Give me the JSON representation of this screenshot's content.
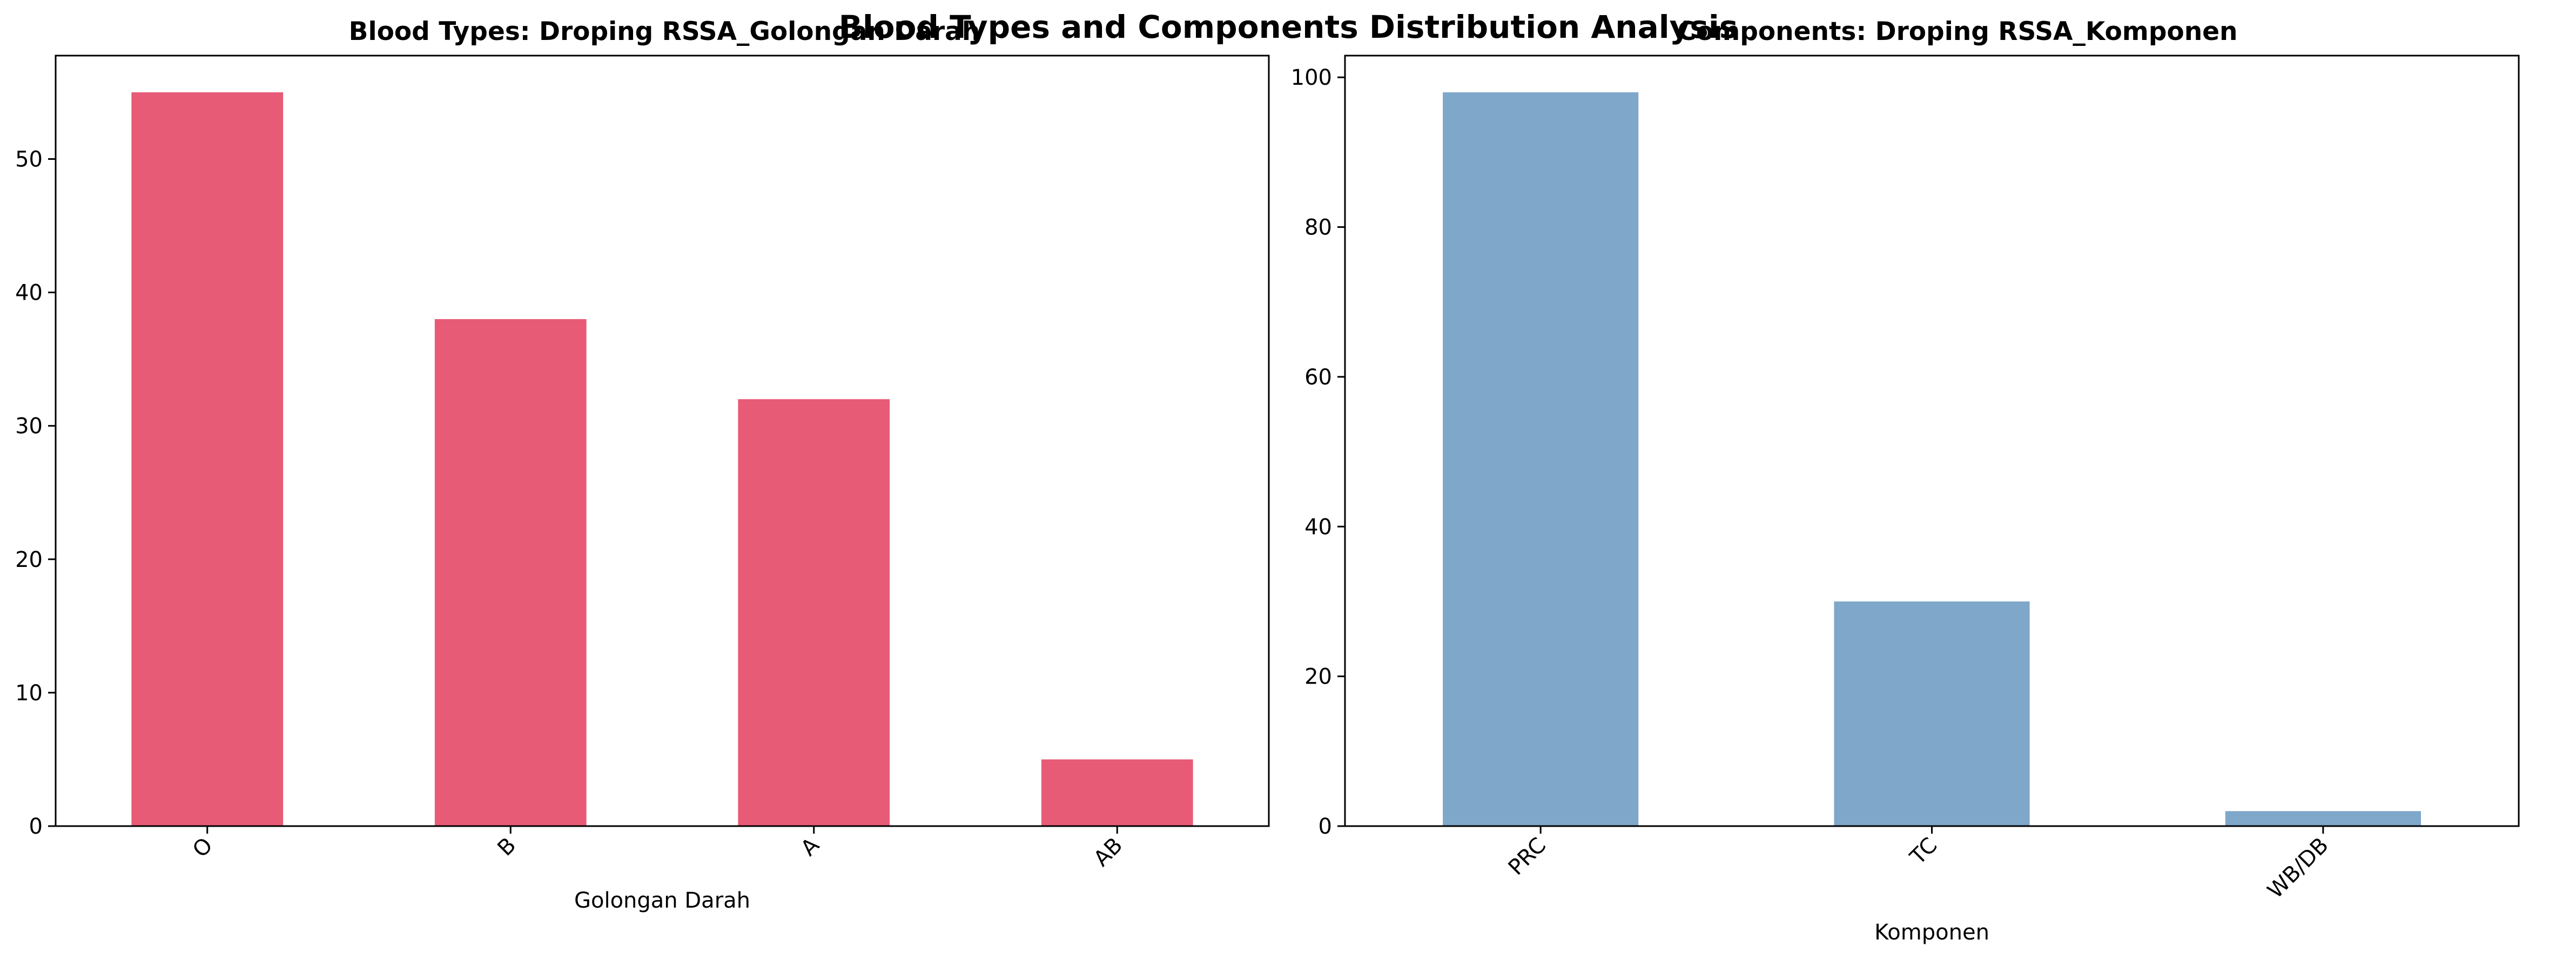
{
  "figure": {
    "title": "Blood Types and Components Distribution Analysis"
  },
  "chart_data": [
    {
      "type": "bar",
      "title": "Blood Types: Droping RSSA_Golongan Darah",
      "categories": [
        "O",
        "B",
        "A",
        "AB"
      ],
      "values": [
        55,
        38,
        32,
        5
      ],
      "xlabel": "Golongan Darah",
      "ylabel": "",
      "ylim": [
        0,
        57.75
      ],
      "yticks": [
        0,
        10,
        20,
        30,
        40,
        50
      ],
      "bar_color": "#e75b76",
      "grid": false,
      "legend": "none"
    },
    {
      "type": "bar",
      "title": "Components: Droping RSSA_Komponen",
      "categories": [
        "PRC",
        "TC",
        "WB/DB"
      ],
      "values": [
        98,
        30,
        2
      ],
      "xlabel": "Komponen",
      "ylabel": "",
      "ylim": [
        0,
        102.9
      ],
      "yticks": [
        0,
        20,
        40,
        60,
        80,
        100
      ],
      "bar_color": "#7ea7ca",
      "grid": false,
      "legend": "none"
    }
  ]
}
